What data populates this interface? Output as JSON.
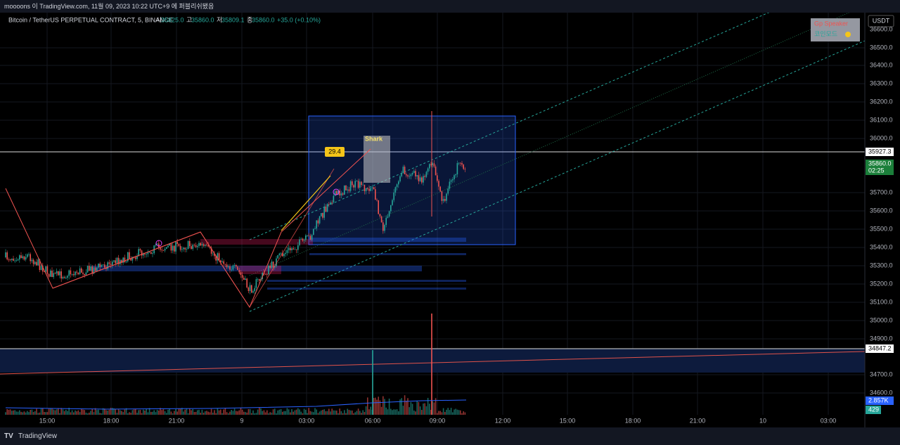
{
  "header": {
    "title": "moooons 이 TradingView.com, 11월 09, 2023 10:22 UTC+9 에 퍼블리쉬됐음"
  },
  "legend": {
    "symbol": "Bitcoin / TetherUS PERPETUAL CONTRACT, 5, BINANCE",
    "fields": [
      {
        "label": "시",
        "value": "35825.0"
      },
      {
        "label": "고",
        "value": "35860.0"
      },
      {
        "label": "저",
        "value": "35809.1"
      },
      {
        "label": "종",
        "value": "35860.0"
      }
    ],
    "change": "+35.0 (+0.10%)"
  },
  "currency": "USDT",
  "price_axis": {
    "labels": [
      "36600.0",
      "36500.0",
      "36400.0",
      "36300.0",
      "36200.0",
      "36100.0",
      "36000.0",
      "35700.0",
      "35600.0",
      "35500.0",
      "35400.0",
      "35300.0",
      "35200.0",
      "35100.0",
      "35000.0",
      "34900.0",
      "34700.0",
      "34600.0",
      "0.0"
    ]
  },
  "price_tags": {
    "line_a": "35927.3",
    "last": "35860.0",
    "countdown": "02:25",
    "line_b": "34847.2",
    "volume_ma": "2.857K",
    "volume": "429"
  },
  "time_axis": {
    "labels": [
      "15:00",
      "18:00",
      "21:00",
      "9",
      "03:00",
      "06:00",
      "09:00",
      "12:00",
      "15:00",
      "18:00",
      "21:00",
      "10",
      "03:00"
    ]
  },
  "overlay": {
    "line1": "Gp Speaker",
    "line2": "코인모드"
  },
  "annotations": {
    "value_tag": "29.4",
    "pattern": "Shark"
  },
  "footer": {
    "brand": "TradingView"
  }
}
